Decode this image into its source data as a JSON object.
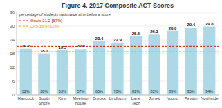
{
  "chart_data": {
    "type": "bar",
    "title": "Figure 4. 2017 Composite ACT Scores",
    "categories": [
      "Hancock",
      "South\nShore",
      "King",
      "Meeting-\nhouse",
      "Brooks",
      "Lindblom",
      "Lane\nTech",
      "Jones",
      "Young",
      "Payton",
      "Northside"
    ],
    "values": [
      20.2,
      18.1,
      19.5,
      20.0,
      23.4,
      22.9,
      25.5,
      26.3,
      28.0,
      29.4,
      29.8
    ],
    "value_labels": [
      "20.2",
      "18.1",
      "19.5",
      "20.0",
      "23.4",
      "22.9",
      "25.5",
      "26.3",
      "28.0",
      "29.4",
      "29.8"
    ],
    "data_labels": true,
    "color": "#add8e6",
    "percentages": [
      {
        "value": 32,
        "label": "32%"
      },
      {
        "value": 38,
        "label": "38%"
      },
      {
        "value": 53,
        "label": "53%"
      },
      {
        "value": 57,
        "label": "57%"
      },
      {
        "value": 65,
        "label": "65%"
      },
      {
        "value": 70,
        "label": "70%"
      },
      {
        "value": 81,
        "label": "81%"
      },
      {
        "value": 82,
        "label": "82%"
      },
      {
        "value": 89,
        "label": "89%"
      },
      {
        "value": 93,
        "label": "93%"
      },
      {
        "value": 94,
        "label": "94%"
      }
    ],
    "reference_lines": [
      {
        "value": 21.2,
        "label": "Illinois 21.2 [57%]",
        "color": "#CC2200"
      },
      {
        "value": 18.9,
        "label": "CPS 18.9 [61%]",
        "color": "#FFA500"
      }
    ],
    "note": "percentage of students nationwide at or below a score",
    "ylim": [
      0,
      36
    ],
    "yticks": [
      0,
      6,
      12,
      18,
      24,
      30,
      36
    ],
    "grid": true
  }
}
